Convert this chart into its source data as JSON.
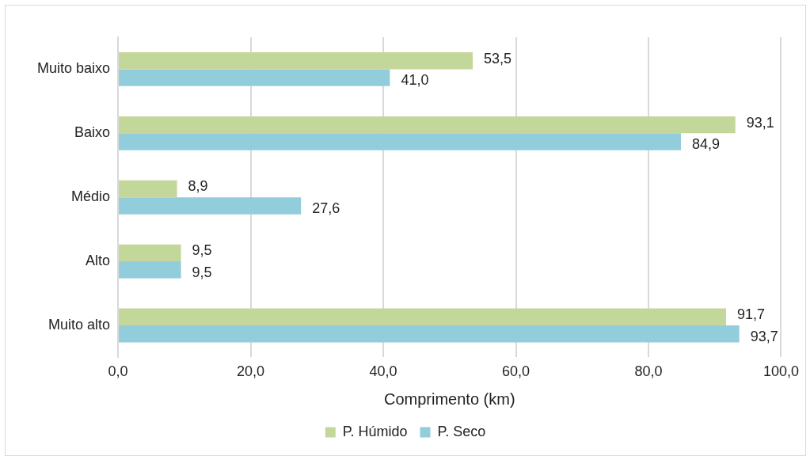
{
  "chart_data": {
    "type": "bar",
    "orientation": "horizontal",
    "xlabel": "Comprimento (km)",
    "categories": [
      "Muito baixo",
      "Baixo",
      "Médio",
      "Alto",
      "Muito alto"
    ],
    "series": [
      {
        "name": "P. Húmido",
        "color": "#c4d79b",
        "values": [
          53.5,
          93.1,
          8.9,
          9.5,
          91.7
        ],
        "value_labels": [
          "53,5",
          "93,1",
          "8,9",
          "9,5",
          "91,7"
        ]
      },
      {
        "name": "P. Seco",
        "color": "#92cddc",
        "values": [
          41.0,
          84.9,
          27.6,
          9.5,
          93.7
        ],
        "value_labels": [
          "41,0",
          "84,9",
          "27,6",
          "9,5",
          "93,7"
        ]
      }
    ],
    "xlim": [
      0,
      100
    ],
    "xticks": [
      {
        "value": 0,
        "label": "0,0"
      },
      {
        "value": 20,
        "label": "20,0"
      },
      {
        "value": 40,
        "label": "40,0"
      },
      {
        "value": 60,
        "label": "60,0"
      },
      {
        "value": 80,
        "label": "80,0"
      },
      {
        "value": 100,
        "label": "100,0"
      }
    ],
    "grid": "x",
    "legend": "bottom"
  }
}
